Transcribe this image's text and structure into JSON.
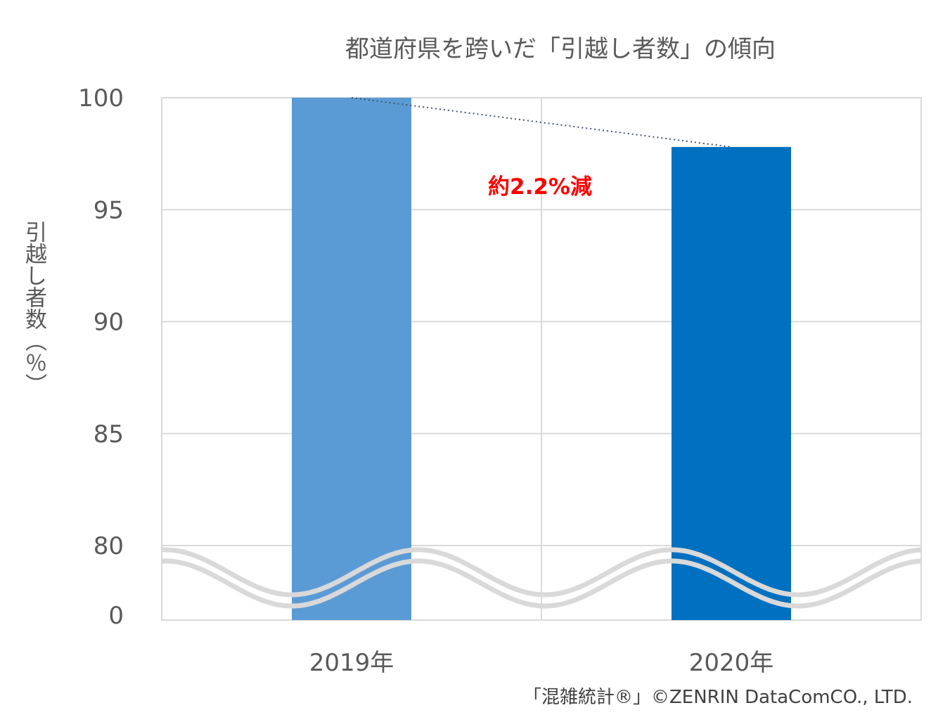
{
  "chart_data": {
    "type": "bar",
    "title": "都道府県を跨いだ「引越し者数」の傾向",
    "ylabel": "引越し者数（％）",
    "xlabel": "",
    "categories": [
      "2019年",
      "2020年"
    ],
    "values": [
      100,
      97.8
    ],
    "bar_colors": [
      "#5b9bd5",
      "#0070c0"
    ],
    "ylim": [
      80,
      100
    ],
    "y_ticks": [
      "100",
      "95",
      "90",
      "85",
      "80",
      "0"
    ],
    "axis_break": true,
    "grid": true,
    "annotation": "約2.2%減",
    "annotation_color": "#ff0000",
    "trend_line": "dotted"
  },
  "credit": "「混雑統計®」©ZENRIN DataComCO., LTD."
}
